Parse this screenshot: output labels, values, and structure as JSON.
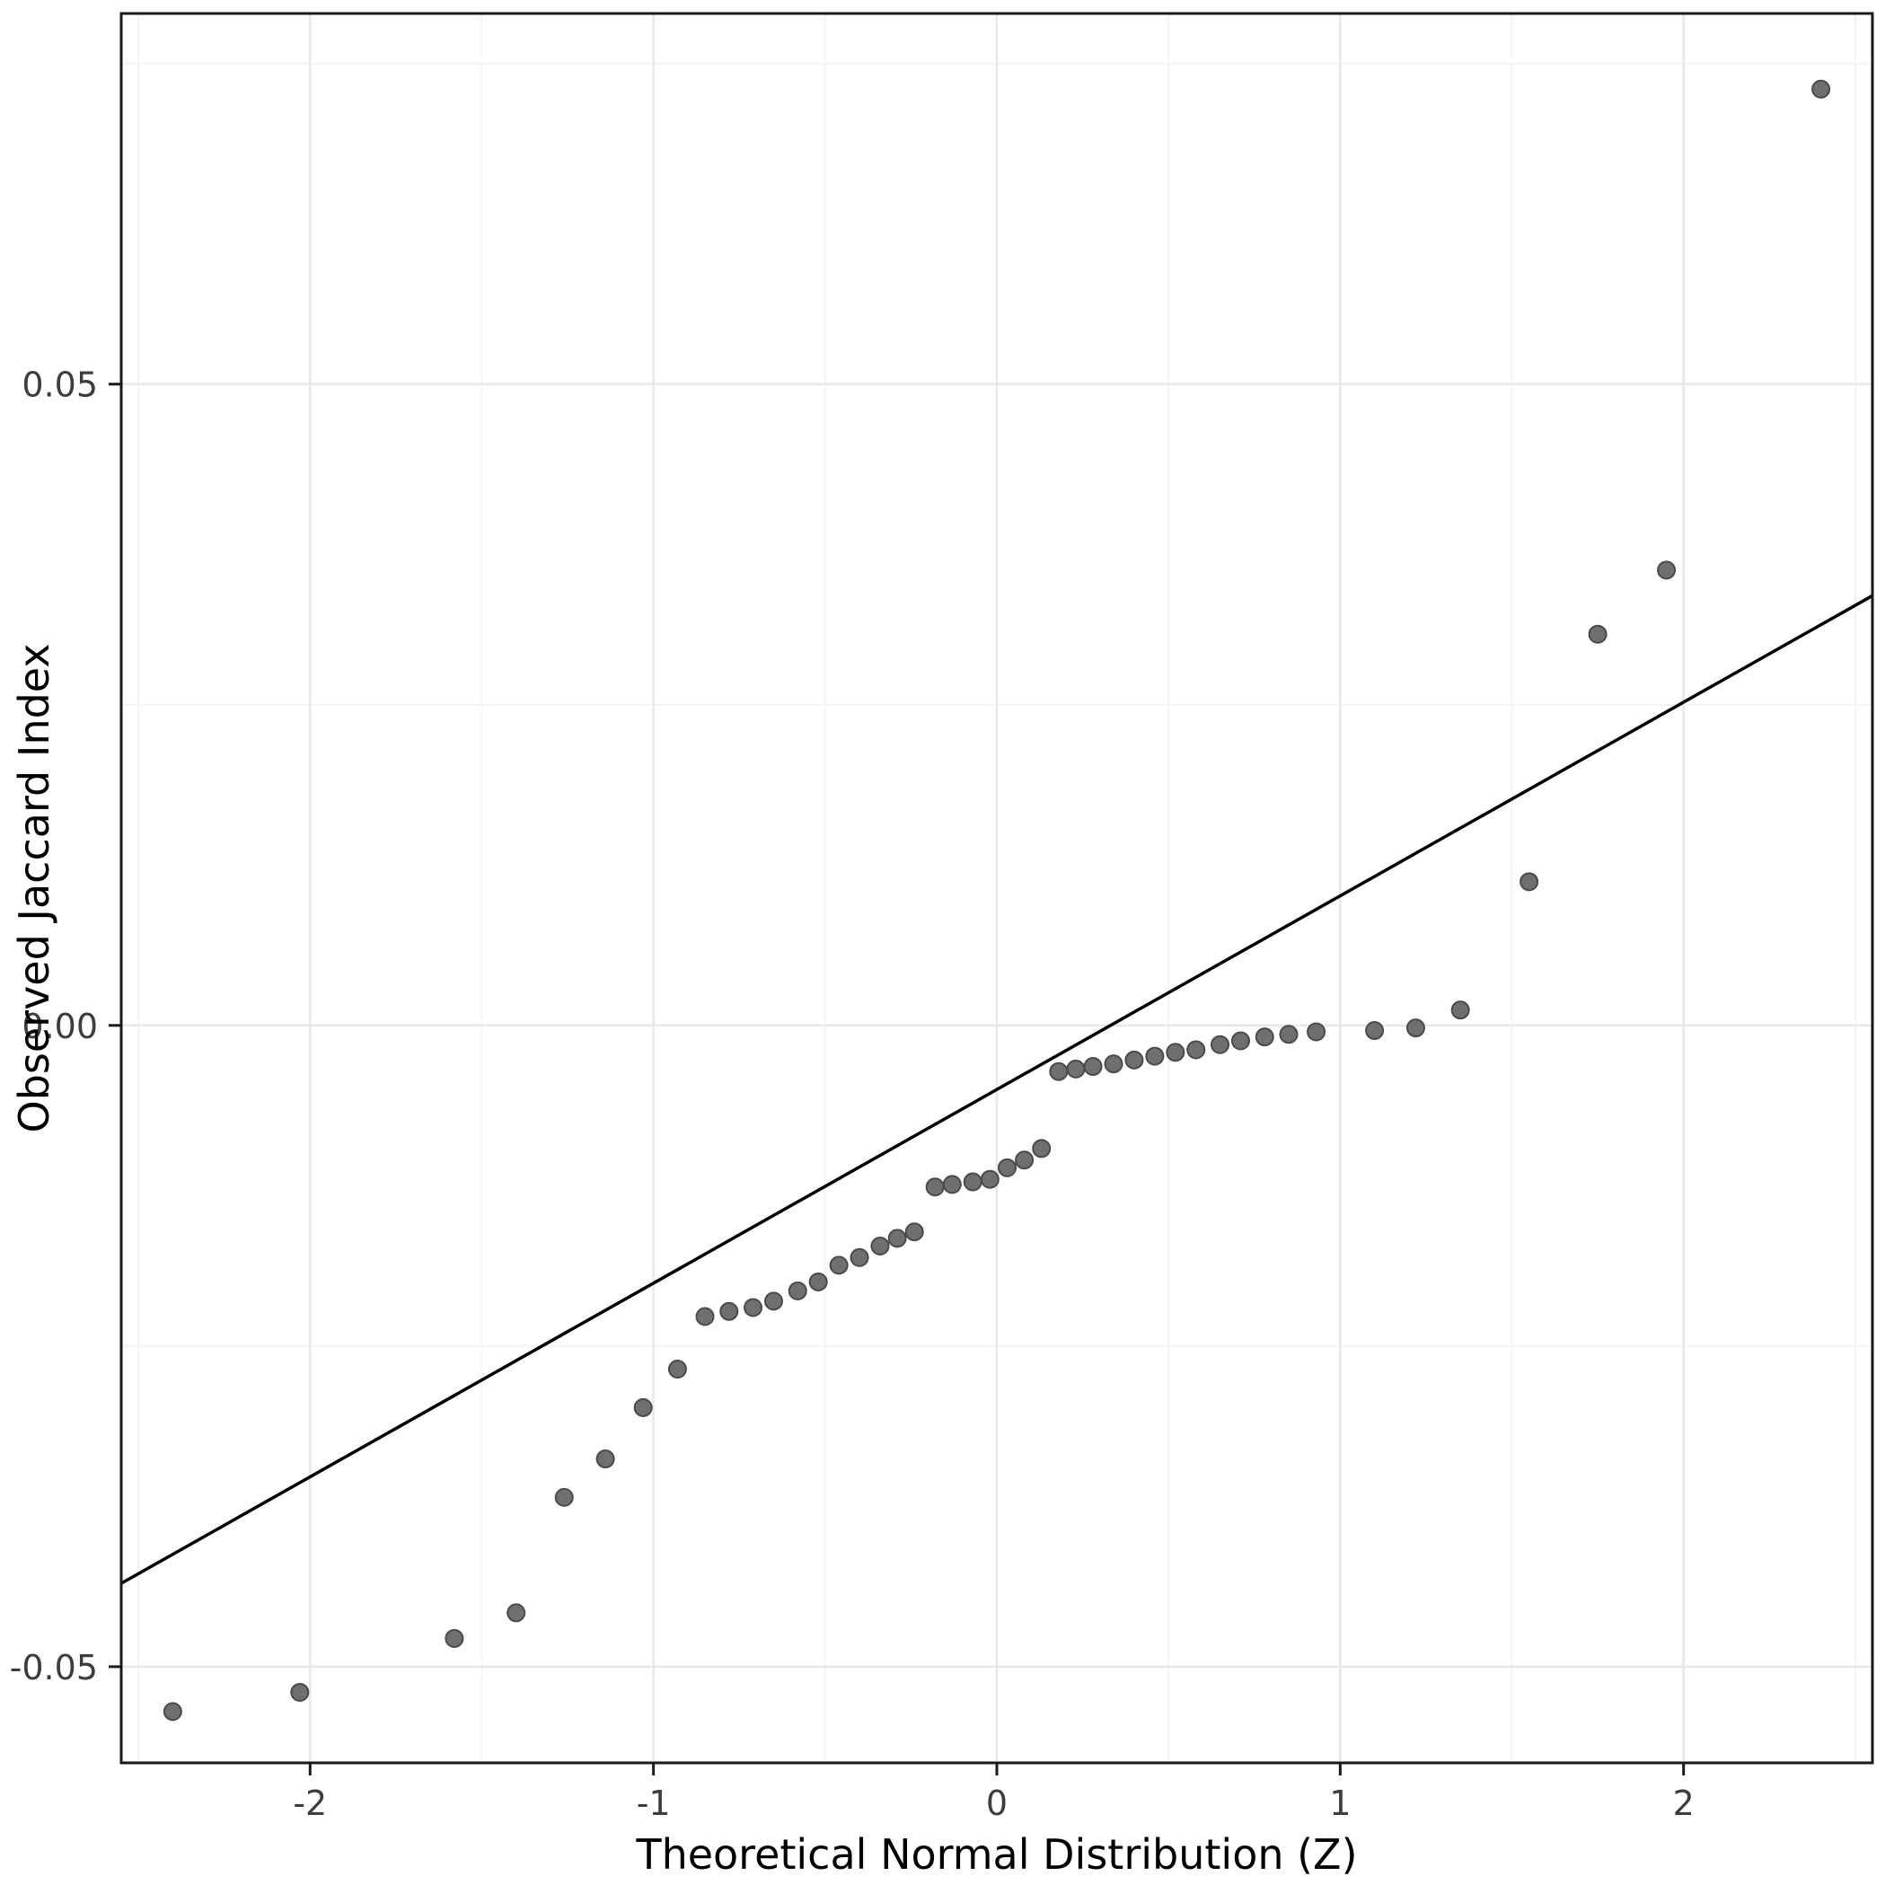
{
  "chart_data": {
    "type": "scatter",
    "title": "",
    "xlabel": "Theoretical Normal Distribution (Z)",
    "ylabel": "Observed Jaccard Index",
    "xlim": [
      -2.55,
      2.55
    ],
    "ylim": [
      -0.0575,
      0.0789
    ],
    "grid": "on",
    "legend": "none",
    "x_ticks": [
      {
        "value": -2,
        "label": "-2"
      },
      {
        "value": -1,
        "label": "-1"
      },
      {
        "value": 0,
        "label": "0"
      },
      {
        "value": 1,
        "label": "1"
      },
      {
        "value": 2,
        "label": "2"
      }
    ],
    "y_ticks": [
      {
        "value": -0.05,
        "label": "-0.05"
      },
      {
        "value": 0,
        "label": "0.00"
      },
      {
        "value": 0.05,
        "label": "0.05"
      }
    ],
    "x_minor_gridlines": [
      -2.5,
      -1.5,
      -0.5,
      0.5,
      1.5,
      2.5
    ],
    "y_minor_gridlines": [
      -0.025,
      0.025,
      0.075
    ],
    "reference_line": {
      "slope": 0.0151,
      "intercept": -0.005
    },
    "points": [
      [
        -2.4,
        -0.0535
      ],
      [
        -2.03,
        -0.052
      ],
      [
        -1.58,
        -0.0478
      ],
      [
        -1.4,
        -0.0458
      ],
      [
        -1.26,
        -0.0368
      ],
      [
        -1.14,
        -0.0338
      ],
      [
        -1.03,
        -0.0298
      ],
      [
        -0.93,
        -0.0268
      ],
      [
        -0.85,
        -0.0227
      ],
      [
        -0.78,
        -0.0223
      ],
      [
        -0.71,
        -0.022
      ],
      [
        -0.65,
        -0.0215
      ],
      [
        -0.58,
        -0.0207
      ],
      [
        -0.52,
        -0.02
      ],
      [
        -0.46,
        -0.0187
      ],
      [
        -0.4,
        -0.0181
      ],
      [
        -0.34,
        -0.0172
      ],
      [
        -0.29,
        -0.0166
      ],
      [
        -0.24,
        -0.0161
      ],
      [
        -0.18,
        -0.0126
      ],
      [
        -0.13,
        -0.0124
      ],
      [
        -0.07,
        -0.0122
      ],
      [
        -0.02,
        -0.012
      ],
      [
        0.03,
        -0.0111
      ],
      [
        0.08,
        -0.0105
      ],
      [
        0.13,
        -0.0096
      ],
      [
        0.18,
        -0.0036
      ],
      [
        0.23,
        -0.0034
      ],
      [
        0.28,
        -0.0032
      ],
      [
        0.34,
        -0.003
      ],
      [
        0.4,
        -0.0027
      ],
      [
        0.46,
        -0.0024
      ],
      [
        0.52,
        -0.0021
      ],
      [
        0.58,
        -0.0019
      ],
      [
        0.65,
        -0.0015
      ],
      [
        0.71,
        -0.0012
      ],
      [
        0.78,
        -0.0009
      ],
      [
        0.85,
        -0.0007
      ],
      [
        0.93,
        -0.0005
      ],
      [
        1.1,
        -0.0004
      ],
      [
        1.22,
        -0.0002
      ],
      [
        1.35,
        0.0012
      ],
      [
        1.55,
        0.0112
      ],
      [
        1.75,
        0.0305
      ],
      [
        1.95,
        0.0355
      ],
      [
        2.4,
        0.073
      ]
    ],
    "colors": {
      "panel_background": "#ffffff",
      "grid_major": "#e8e8e8",
      "grid_minor": "#f4f4f4",
      "panel_border": "#1a1a1a",
      "reference_line": "#000000",
      "point_fill": "#6f6f6f",
      "point_stroke": "#4a4a4a",
      "tick_label": "#3d3d3d",
      "axis_title": "#000000"
    }
  }
}
